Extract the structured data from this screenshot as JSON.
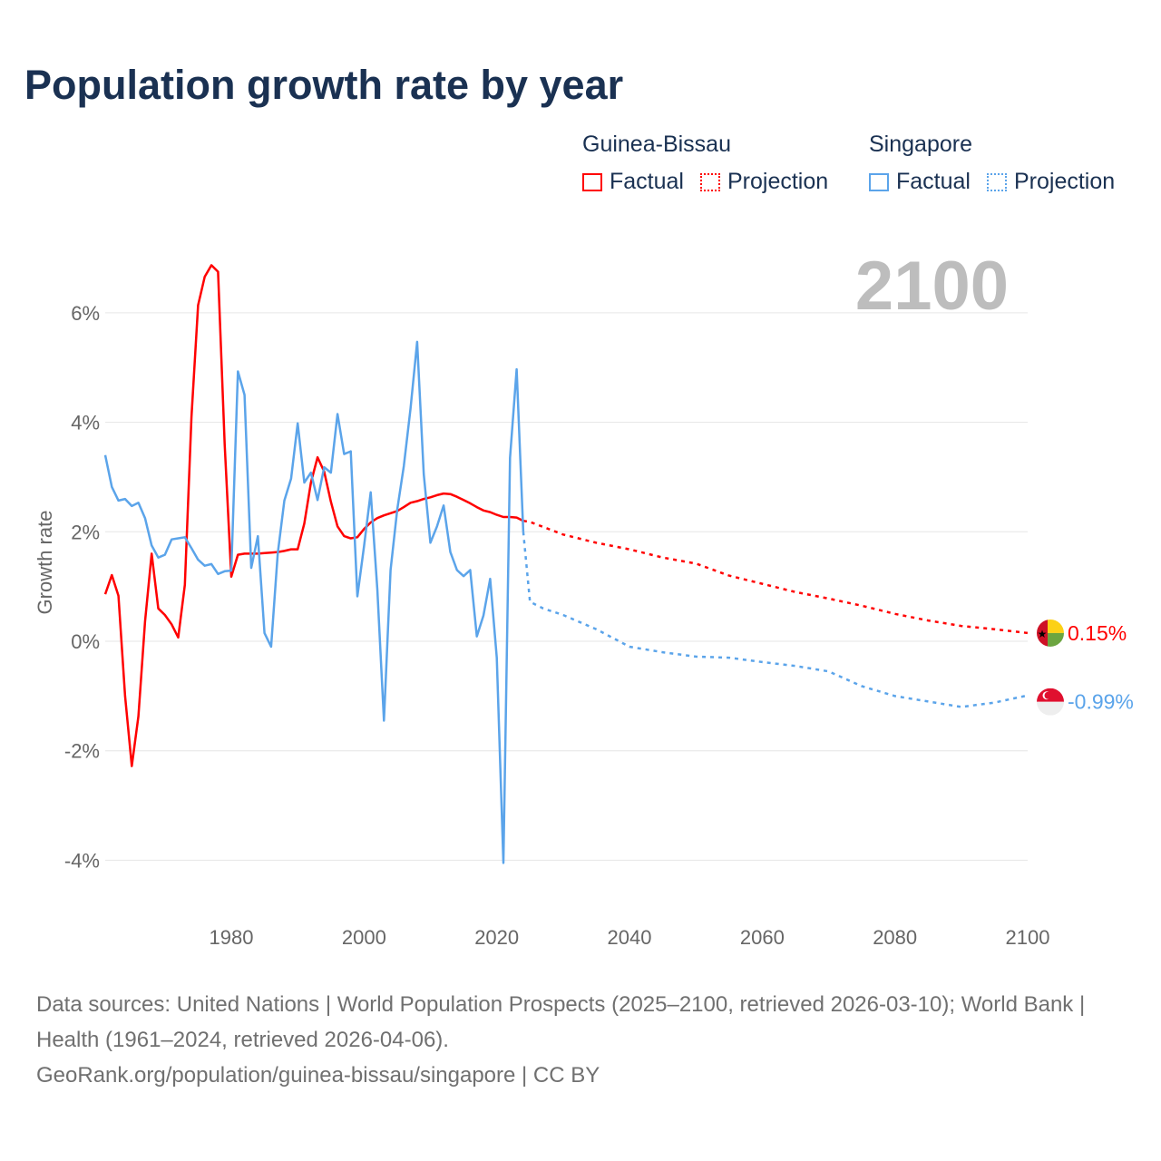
{
  "chart_data": {
    "type": "line",
    "title": "Population growth rate by year",
    "ylabel": "Growth rate",
    "xlabel": "",
    "xlim": [
      1961,
      2100
    ],
    "ylim": [
      -4,
      6
    ],
    "x_ticks": [
      1980,
      2000,
      2020,
      2040,
      2060,
      2080,
      2100
    ],
    "y_ticks": [
      -4,
      -2,
      0,
      2,
      4,
      6
    ],
    "y_tick_labels": [
      "-4%",
      "-2%",
      "0%",
      "2%",
      "4%",
      "6%"
    ],
    "x_tick_labels": [
      "1980",
      "2000",
      "2020",
      "2040",
      "2060",
      "2080",
      "2100"
    ],
    "current_year_label": "2100",
    "grid": true,
    "legend_position": "top-right",
    "legend": {
      "factual_label": "Factual",
      "projection_label": "Projection"
    },
    "series": [
      {
        "name": "Guinea-Bissau",
        "color": "#ff0000",
        "flag": "guinea-bissau-flag",
        "end_label": "0.15%",
        "factual": {
          "start_year": 1961,
          "values": [
            0.86,
            1.21,
            0.83,
            -1.0,
            -2.28,
            -1.37,
            0.36,
            1.6,
            0.6,
            0.48,
            0.31,
            0.07,
            1.03,
            4.1,
            6.14,
            6.66,
            6.87,
            6.75,
            3.6,
            1.18,
            1.58,
            1.6,
            1.6,
            1.6,
            1.61,
            1.62,
            1.63,
            1.65,
            1.68,
            1.68,
            2.15,
            2.9,
            3.36,
            3.1,
            2.55,
            2.1,
            1.92,
            1.88,
            1.9,
            2.05,
            2.17,
            2.25,
            2.3,
            2.34,
            2.38,
            2.45,
            2.53,
            2.56,
            2.6,
            2.63,
            2.67,
            2.7,
            2.69,
            2.64,
            2.58,
            2.52,
            2.45,
            2.39,
            2.36,
            2.31,
            2.27,
            2.27,
            2.26,
            2.2
          ]
        },
        "projection": {
          "years": [
            2024,
            2025,
            2030,
            2035,
            2040,
            2045,
            2050,
            2055,
            2060,
            2065,
            2070,
            2075,
            2080,
            2085,
            2090,
            2095,
            2100
          ],
          "values": [
            2.2,
            2.18,
            1.95,
            1.8,
            1.68,
            1.53,
            1.42,
            1.2,
            1.05,
            0.9,
            0.78,
            0.65,
            0.5,
            0.38,
            0.28,
            0.22,
            0.15
          ]
        }
      },
      {
        "name": "Singapore",
        "color": "#5ba4ea",
        "flag": "singapore-flag",
        "end_label": "-0.99%",
        "factual": {
          "start_year": 1961,
          "values": [
            3.4,
            2.82,
            2.57,
            2.6,
            2.47,
            2.53,
            2.25,
            1.75,
            1.53,
            1.58,
            1.86,
            1.88,
            1.9,
            1.7,
            1.49,
            1.38,
            1.41,
            1.23,
            1.28,
            1.29,
            4.93,
            4.5,
            1.34,
            1.92,
            0.15,
            -0.1,
            1.6,
            2.57,
            2.97,
            3.98,
            2.9,
            3.08,
            2.58,
            3.18,
            3.08,
            4.15,
            3.42,
            3.47,
            0.82,
            1.73,
            2.72,
            0.95,
            -1.45,
            1.3,
            2.4,
            3.2,
            4.25,
            5.47,
            3.05,
            1.8,
            2.1,
            2.48,
            1.63,
            1.3,
            1.19,
            1.3,
            0.09,
            0.47,
            1.14,
            -0.3,
            -4.05,
            3.35,
            4.97,
            2.0
          ]
        },
        "projection": {
          "years": [
            2024,
            2025,
            2027,
            2030,
            2035,
            2040,
            2045,
            2050,
            2055,
            2060,
            2065,
            2070,
            2075,
            2080,
            2085,
            2090,
            2095,
            2100
          ],
          "values": [
            2.0,
            0.72,
            0.6,
            0.48,
            0.22,
            -0.1,
            -0.2,
            -0.28,
            -0.3,
            -0.38,
            -0.45,
            -0.55,
            -0.82,
            -1.0,
            -1.1,
            -1.2,
            -1.12,
            -0.99
          ]
        }
      }
    ]
  },
  "sources": {
    "line1": "Data sources: United Nations | World Population Prospects (2025–2100, retrieved 2026-03-10); World Bank | Health (1961–2024, retrieved 2026-04-06).",
    "line2": "GeoRank.org/population/guinea-bissau/singapore | CC BY"
  }
}
